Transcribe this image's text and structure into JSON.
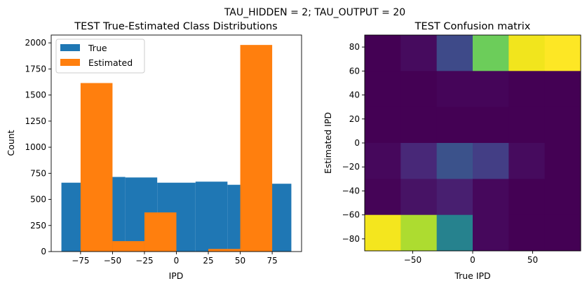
{
  "figure": {
    "suptitle": "TAU_HIDDEN = 2; TAU_OUTPUT = 20"
  },
  "chart_data": [
    {
      "type": "bar",
      "title": "TEST True-Estimated Class Distributions",
      "xlabel": "IPD",
      "ylabel": "Count",
      "xlim": [
        -98,
        98
      ],
      "ylim": [
        0,
        2075
      ],
      "xticks": [
        -75,
        -50,
        -25,
        0,
        25,
        50,
        75
      ],
      "xtick_labels": [
        "−75",
        "−50",
        "−25",
        "0",
        "25",
        "50",
        "75"
      ],
      "yticks": [
        0,
        250,
        500,
        750,
        1000,
        1250,
        1500,
        1750,
        2000
      ],
      "ytick_labels": [
        "0",
        "250",
        "500",
        "750",
        "1000",
        "1250",
        "1500",
        "1750",
        "2000"
      ],
      "legend": {
        "position": "top-left",
        "entries": [
          "True",
          "Estimated"
        ]
      },
      "series": [
        {
          "name": "True",
          "color": "#1f77b4",
          "bins": [
            [
              -90,
              -65,
              660
            ],
            [
              -65,
              -40,
              715
            ],
            [
              -40,
              -15,
              710
            ],
            [
              -15,
              15,
              660
            ],
            [
              15,
              40,
              670
            ],
            [
              40,
              65,
              640
            ],
            [
              65,
              90,
              650
            ]
          ]
        },
        {
          "name": "Estimated",
          "color": "#ff7f0e",
          "bins": [
            [
              -75,
              -50,
              1615
            ],
            [
              -50,
              -25,
              100
            ],
            [
              -25,
              0,
              375
            ],
            [
              25,
              50,
              25
            ],
            [
              50,
              75,
              1980
            ]
          ]
        }
      ]
    },
    {
      "type": "heatmap",
      "title": "TEST Confusion matrix",
      "xlabel": "True IPD",
      "ylabel": "Estimated IPD",
      "xlim": [
        -90,
        90
      ],
      "ylim": [
        -90,
        90
      ],
      "xticks": [
        -50,
        0,
        50
      ],
      "xtick_labels": [
        "−50",
        "0",
        "50"
      ],
      "yticks": [
        -80,
        -60,
        -40,
        -20,
        0,
        20,
        40,
        60,
        80
      ],
      "ytick_labels": [
        "−80",
        "−60",
        "−40",
        "−20",
        "0",
        "20",
        "40",
        "60",
        "80"
      ],
      "x_edges": [
        -90,
        -60,
        -30,
        0,
        30,
        60,
        90
      ],
      "y_edges": [
        -90,
        -60,
        -30,
        0,
        30,
        60,
        90
      ],
      "rows_top_to_bottom": [
        [
          "#440154",
          "#460b5e",
          "#3e4a89",
          "#6ccd5a",
          "#f1e51d",
          "#fde725"
        ],
        [
          "#440154",
          "#440154",
          "#450559",
          "#450559",
          "#440154",
          "#440154"
        ],
        [
          "#440154",
          "#440154",
          "#440154",
          "#440154",
          "#440154",
          "#440154"
        ],
        [
          "#46085c",
          "#482878",
          "#3b528b",
          "#433e85",
          "#460b5e",
          "#440154"
        ],
        [
          "#450457",
          "#471365",
          "#481f70",
          "#46085c",
          "#440154",
          "#440154"
        ],
        [
          "#f4e61e",
          "#addc30",
          "#26828e",
          "#46085c",
          "#440154",
          "#440154"
        ]
      ]
    }
  ]
}
